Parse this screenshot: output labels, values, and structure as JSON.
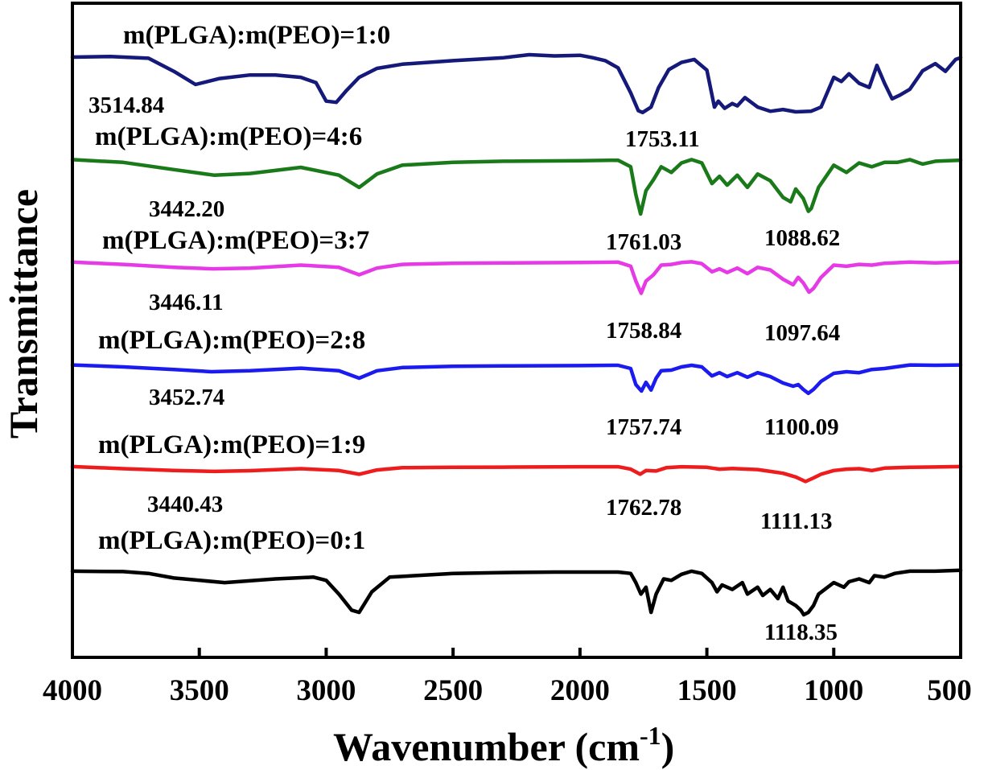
{
  "chart_data": {
    "type": "line",
    "xlabel": "Wavenumber  (cm",
    "xlabel_sup": "-1",
    "xlabel_close": ")",
    "ylabel": "Transmittance",
    "xlim": [
      4000,
      500
    ],
    "x_reversed": true,
    "x_ticks": [
      "4000",
      "3500",
      "3000",
      "2500",
      "2000",
      "1500",
      "1000",
      "500"
    ],
    "y_ticks_shown": false,
    "grid": false,
    "legend": "none (series labelled inline above each trace)",
    "series": [
      {
        "name": "m(PLGA):m(PEO)=1:0",
        "color": "#14197a",
        "points": [
          [
            4000,
            0.96
          ],
          [
            3850,
            0.97
          ],
          [
            3700,
            0.94
          ],
          [
            3600,
            0.72
          ],
          [
            3514.84,
            0.5
          ],
          [
            3420,
            0.6
          ],
          [
            3300,
            0.66
          ],
          [
            3200,
            0.66
          ],
          [
            3100,
            0.62
          ],
          [
            3040,
            0.53
          ],
          [
            3000,
            0.22
          ],
          [
            2960,
            0.2
          ],
          [
            2920,
            0.4
          ],
          [
            2870,
            0.62
          ],
          [
            2800,
            0.77
          ],
          [
            2700,
            0.84
          ],
          [
            2500,
            0.9
          ],
          [
            2300,
            0.95
          ],
          [
            2200,
            1.0
          ],
          [
            2100,
            0.98
          ],
          [
            2000,
            0.99
          ],
          [
            1950,
            0.95
          ],
          [
            1900,
            0.9
          ],
          [
            1850,
            0.78
          ],
          [
            1800,
            0.36
          ],
          [
            1770,
            0.06
          ],
          [
            1753.11,
            0.03
          ],
          [
            1720,
            0.12
          ],
          [
            1690,
            0.45
          ],
          [
            1650,
            0.75
          ],
          [
            1600,
            0.87
          ],
          [
            1550,
            0.92
          ],
          [
            1500,
            0.74
          ],
          [
            1470,
            0.12
          ],
          [
            1455,
            0.22
          ],
          [
            1430,
            0.1
          ],
          [
            1400,
            0.18
          ],
          [
            1380,
            0.14
          ],
          [
            1350,
            0.28
          ],
          [
            1300,
            0.12
          ],
          [
            1250,
            0.05
          ],
          [
            1200,
            0.08
          ],
          [
            1150,
            0.04
          ],
          [
            1090,
            0.05
          ],
          [
            1050,
            0.12
          ],
          [
            1000,
            0.62
          ],
          [
            970,
            0.55
          ],
          [
            940,
            0.68
          ],
          [
            900,
            0.52
          ],
          [
            860,
            0.45
          ],
          [
            830,
            0.82
          ],
          [
            800,
            0.52
          ],
          [
            770,
            0.26
          ],
          [
            740,
            0.32
          ],
          [
            700,
            0.42
          ],
          [
            650,
            0.73
          ],
          [
            600,
            0.85
          ],
          [
            560,
            0.72
          ],
          [
            520,
            0.92
          ],
          [
            500,
            0.95
          ]
        ]
      },
      {
        "name": "m(PLGA):m(PEO)=4:6",
        "color": "#1a7a1a",
        "points": [
          [
            4000,
            0.98
          ],
          [
            3800,
            0.93
          ],
          [
            3600,
            0.8
          ],
          [
            3442.2,
            0.7
          ],
          [
            3300,
            0.73
          ],
          [
            3100,
            0.84
          ],
          [
            2950,
            0.7
          ],
          [
            2870,
            0.48
          ],
          [
            2800,
            0.72
          ],
          [
            2700,
            0.88
          ],
          [
            2500,
            0.93
          ],
          [
            2300,
            0.95
          ],
          [
            2000,
            0.96
          ],
          [
            1850,
            0.97
          ],
          [
            1800,
            0.85
          ],
          [
            1780,
            0.35
          ],
          [
            1761.03,
            0.0
          ],
          [
            1740,
            0.42
          ],
          [
            1710,
            0.62
          ],
          [
            1680,
            0.85
          ],
          [
            1640,
            0.75
          ],
          [
            1600,
            0.92
          ],
          [
            1560,
            0.98
          ],
          [
            1520,
            0.92
          ],
          [
            1480,
            0.55
          ],
          [
            1450,
            0.68
          ],
          [
            1420,
            0.52
          ],
          [
            1380,
            0.7
          ],
          [
            1340,
            0.48
          ],
          [
            1300,
            0.72
          ],
          [
            1250,
            0.6
          ],
          [
            1200,
            0.3
          ],
          [
            1170,
            0.22
          ],
          [
            1150,
            0.45
          ],
          [
            1120,
            0.28
          ],
          [
            1100,
            0.05
          ],
          [
            1088.62,
            0.1
          ],
          [
            1060,
            0.48
          ],
          [
            1000,
            0.88
          ],
          [
            950,
            0.75
          ],
          [
            900,
            0.92
          ],
          [
            850,
            0.85
          ],
          [
            800,
            0.93
          ],
          [
            750,
            0.93
          ],
          [
            700,
            0.98
          ],
          [
            650,
            0.9
          ],
          [
            600,
            0.95
          ],
          [
            500,
            0.97
          ]
        ]
      },
      {
        "name": "m(PLGA):m(PEO)=3:7",
        "color": "#e53ae5",
        "points": [
          [
            4000,
            0.96
          ],
          [
            3800,
            0.9
          ],
          [
            3600,
            0.82
          ],
          [
            3446.11,
            0.78
          ],
          [
            3300,
            0.8
          ],
          [
            3100,
            0.88
          ],
          [
            2950,
            0.82
          ],
          [
            2870,
            0.62
          ],
          [
            2800,
            0.8
          ],
          [
            2700,
            0.9
          ],
          [
            2500,
            0.93
          ],
          [
            2300,
            0.94
          ],
          [
            2000,
            0.95
          ],
          [
            1850,
            0.96
          ],
          [
            1800,
            0.85
          ],
          [
            1780,
            0.45
          ],
          [
            1758.84,
            0.12
          ],
          [
            1740,
            0.45
          ],
          [
            1710,
            0.62
          ],
          [
            1680,
            0.88
          ],
          [
            1640,
            0.9
          ],
          [
            1600,
            0.95
          ],
          [
            1560,
            0.97
          ],
          [
            1520,
            0.92
          ],
          [
            1480,
            0.7
          ],
          [
            1450,
            0.78
          ],
          [
            1420,
            0.68
          ],
          [
            1380,
            0.8
          ],
          [
            1340,
            0.65
          ],
          [
            1300,
            0.82
          ],
          [
            1250,
            0.75
          ],
          [
            1200,
            0.5
          ],
          [
            1160,
            0.35
          ],
          [
            1140,
            0.55
          ],
          [
            1120,
            0.4
          ],
          [
            1097.64,
            0.15
          ],
          [
            1080,
            0.25
          ],
          [
            1050,
            0.55
          ],
          [
            1000,
            0.88
          ],
          [
            950,
            0.85
          ],
          [
            900,
            0.9
          ],
          [
            850,
            0.88
          ],
          [
            800,
            0.93
          ],
          [
            700,
            0.96
          ],
          [
            600,
            0.94
          ],
          [
            500,
            0.96
          ]
        ]
      },
      {
        "name": "m(PLGA):m(PEO)=2:8",
        "color": "#1b1bf0",
        "points": [
          [
            4000,
            0.96
          ],
          [
            3800,
            0.9
          ],
          [
            3600,
            0.82
          ],
          [
            3452.74,
            0.75
          ],
          [
            3300,
            0.78
          ],
          [
            3100,
            0.86
          ],
          [
            2950,
            0.78
          ],
          [
            2870,
            0.55
          ],
          [
            2800,
            0.78
          ],
          [
            2700,
            0.88
          ],
          [
            2500,
            0.92
          ],
          [
            2300,
            0.93
          ],
          [
            2000,
            0.94
          ],
          [
            1850,
            0.95
          ],
          [
            1800,
            0.85
          ],
          [
            1780,
            0.35
          ],
          [
            1757.74,
            0.15
          ],
          [
            1740,
            0.42
          ],
          [
            1720,
            0.18
          ],
          [
            1700,
            0.55
          ],
          [
            1680,
            0.78
          ],
          [
            1640,
            0.8
          ],
          [
            1600,
            0.9
          ],
          [
            1560,
            0.95
          ],
          [
            1520,
            0.9
          ],
          [
            1480,
            0.62
          ],
          [
            1450,
            0.72
          ],
          [
            1420,
            0.6
          ],
          [
            1380,
            0.72
          ],
          [
            1340,
            0.58
          ],
          [
            1300,
            0.72
          ],
          [
            1250,
            0.6
          ],
          [
            1200,
            0.4
          ],
          [
            1160,
            0.3
          ],
          [
            1140,
            0.35
          ],
          [
            1120,
            0.2
          ],
          [
            1100.09,
            0.08
          ],
          [
            1080,
            0.2
          ],
          [
            1050,
            0.45
          ],
          [
            1000,
            0.7
          ],
          [
            950,
            0.75
          ],
          [
            900,
            0.72
          ],
          [
            850,
            0.82
          ],
          [
            800,
            0.85
          ],
          [
            700,
            0.96
          ],
          [
            600,
            0.95
          ],
          [
            500,
            0.96
          ]
        ]
      },
      {
        "name": "m(PLGA):m(PEO)=1:9",
        "color": "#ee1c1c",
        "points": [
          [
            4000,
            0.96
          ],
          [
            3800,
            0.85
          ],
          [
            3600,
            0.75
          ],
          [
            3440.43,
            0.7
          ],
          [
            3300,
            0.74
          ],
          [
            3100,
            0.85
          ],
          [
            2950,
            0.75
          ],
          [
            2870,
            0.55
          ],
          [
            2800,
            0.78
          ],
          [
            2700,
            0.9
          ],
          [
            2500,
            0.92
          ],
          [
            2300,
            0.93
          ],
          [
            2000,
            0.95
          ],
          [
            1850,
            0.95
          ],
          [
            1800,
            0.82
          ],
          [
            1762.78,
            0.55
          ],
          [
            1740,
            0.75
          ],
          [
            1700,
            0.72
          ],
          [
            1660,
            0.9
          ],
          [
            1600,
            0.95
          ],
          [
            1500,
            0.92
          ],
          [
            1450,
            0.82
          ],
          [
            1400,
            0.86
          ],
          [
            1300,
            0.8
          ],
          [
            1250,
            0.7
          ],
          [
            1200,
            0.6
          ],
          [
            1150,
            0.4
          ],
          [
            1111.13,
            0.15
          ],
          [
            1080,
            0.35
          ],
          [
            1050,
            0.55
          ],
          [
            1000,
            0.75
          ],
          [
            950,
            0.82
          ],
          [
            900,
            0.85
          ],
          [
            850,
            0.75
          ],
          [
            800,
            0.88
          ],
          [
            700,
            0.92
          ],
          [
            600,
            0.94
          ],
          [
            500,
            0.96
          ]
        ]
      },
      {
        "name": "m(PLGA):m(PEO)=0:1",
        "color": "#000000",
        "points": [
          [
            4000,
            0.95
          ],
          [
            3800,
            0.94
          ],
          [
            3700,
            0.9
          ],
          [
            3600,
            0.8
          ],
          [
            3400,
            0.7
          ],
          [
            3200,
            0.78
          ],
          [
            3050,
            0.82
          ],
          [
            3000,
            0.75
          ],
          [
            2950,
            0.45
          ],
          [
            2900,
            0.1
          ],
          [
            2870,
            0.05
          ],
          [
            2820,
            0.5
          ],
          [
            2750,
            0.82
          ],
          [
            2500,
            0.9
          ],
          [
            2300,
            0.92
          ],
          [
            2100,
            0.93
          ],
          [
            2000,
            0.93
          ],
          [
            1850,
            0.93
          ],
          [
            1800,
            0.9
          ],
          [
            1780,
            0.7
          ],
          [
            1760,
            0.45
          ],
          [
            1740,
            0.6
          ],
          [
            1720,
            0.05
          ],
          [
            1700,
            0.45
          ],
          [
            1670,
            0.78
          ],
          [
            1640,
            0.75
          ],
          [
            1600,
            0.88
          ],
          [
            1560,
            0.95
          ],
          [
            1520,
            0.9
          ],
          [
            1480,
            0.7
          ],
          [
            1460,
            0.5
          ],
          [
            1440,
            0.65
          ],
          [
            1400,
            0.55
          ],
          [
            1360,
            0.7
          ],
          [
            1340,
            0.45
          ],
          [
            1300,
            0.6
          ],
          [
            1280,
            0.42
          ],
          [
            1250,
            0.55
          ],
          [
            1220,
            0.35
          ],
          [
            1200,
            0.6
          ],
          [
            1180,
            0.3
          ],
          [
            1150,
            0.2
          ],
          [
            1130,
            0.1
          ],
          [
            1118.35,
            0.0
          ],
          [
            1100,
            0.05
          ],
          [
            1080,
            0.2
          ],
          [
            1060,
            0.45
          ],
          [
            1000,
            0.7
          ],
          [
            960,
            0.6
          ],
          [
            940,
            0.72
          ],
          [
            900,
            0.78
          ],
          [
            860,
            0.7
          ],
          [
            840,
            0.85
          ],
          [
            800,
            0.82
          ],
          [
            760,
            0.9
          ],
          [
            700,
            0.95
          ],
          [
            600,
            0.95
          ],
          [
            500,
            0.97
          ]
        ]
      }
    ],
    "series_labels": [
      "m(PLGA):m(PEO)=1:0",
      "m(PLGA):m(PEO)=4:6",
      "m(PLGA):m(PEO)=3:7",
      "m(PLGA):m(PEO)=2:8",
      "m(PLGA):m(PEO)=1:9",
      "m(PLGA):m(PEO)=0:1"
    ],
    "annotations": [
      "3514.84",
      "1753.11",
      "3442.20",
      "1761.03",
      "1088.62",
      "3446.11",
      "1758.84",
      "1097.64",
      "3452.74",
      "1757.74",
      "1100.09",
      "3440.43",
      "1762.78",
      "1111.13",
      "1118.35"
    ]
  }
}
